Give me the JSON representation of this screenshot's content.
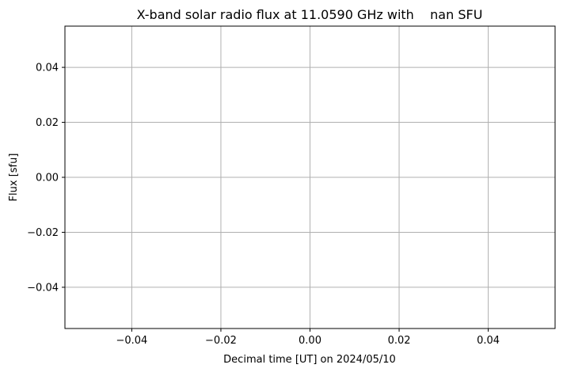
{
  "chart_data": {
    "type": "line",
    "title": "X-band solar radio flux at 11.0590 GHz with    nan SFU",
    "xlabel": "Decimal time [UT] on 2024/05/10",
    "ylabel": "Flux [sfu]",
    "xlim": [
      -0.055,
      0.055
    ],
    "ylim": [
      -0.055,
      0.055
    ],
    "xticks": [
      -0.04,
      -0.02,
      0.0,
      0.02,
      0.04
    ],
    "xtick_labels": [
      "−0.04",
      "−0.02",
      "0.00",
      "0.02",
      "0.04"
    ],
    "yticks": [
      -0.04,
      -0.02,
      0.0,
      0.02,
      0.04
    ],
    "ytick_labels": [
      "−0.04",
      "−0.02",
      "0.00",
      "0.02",
      "0.04"
    ],
    "grid": true,
    "series": [
      {
        "x": [],
        "y": []
      }
    ]
  }
}
